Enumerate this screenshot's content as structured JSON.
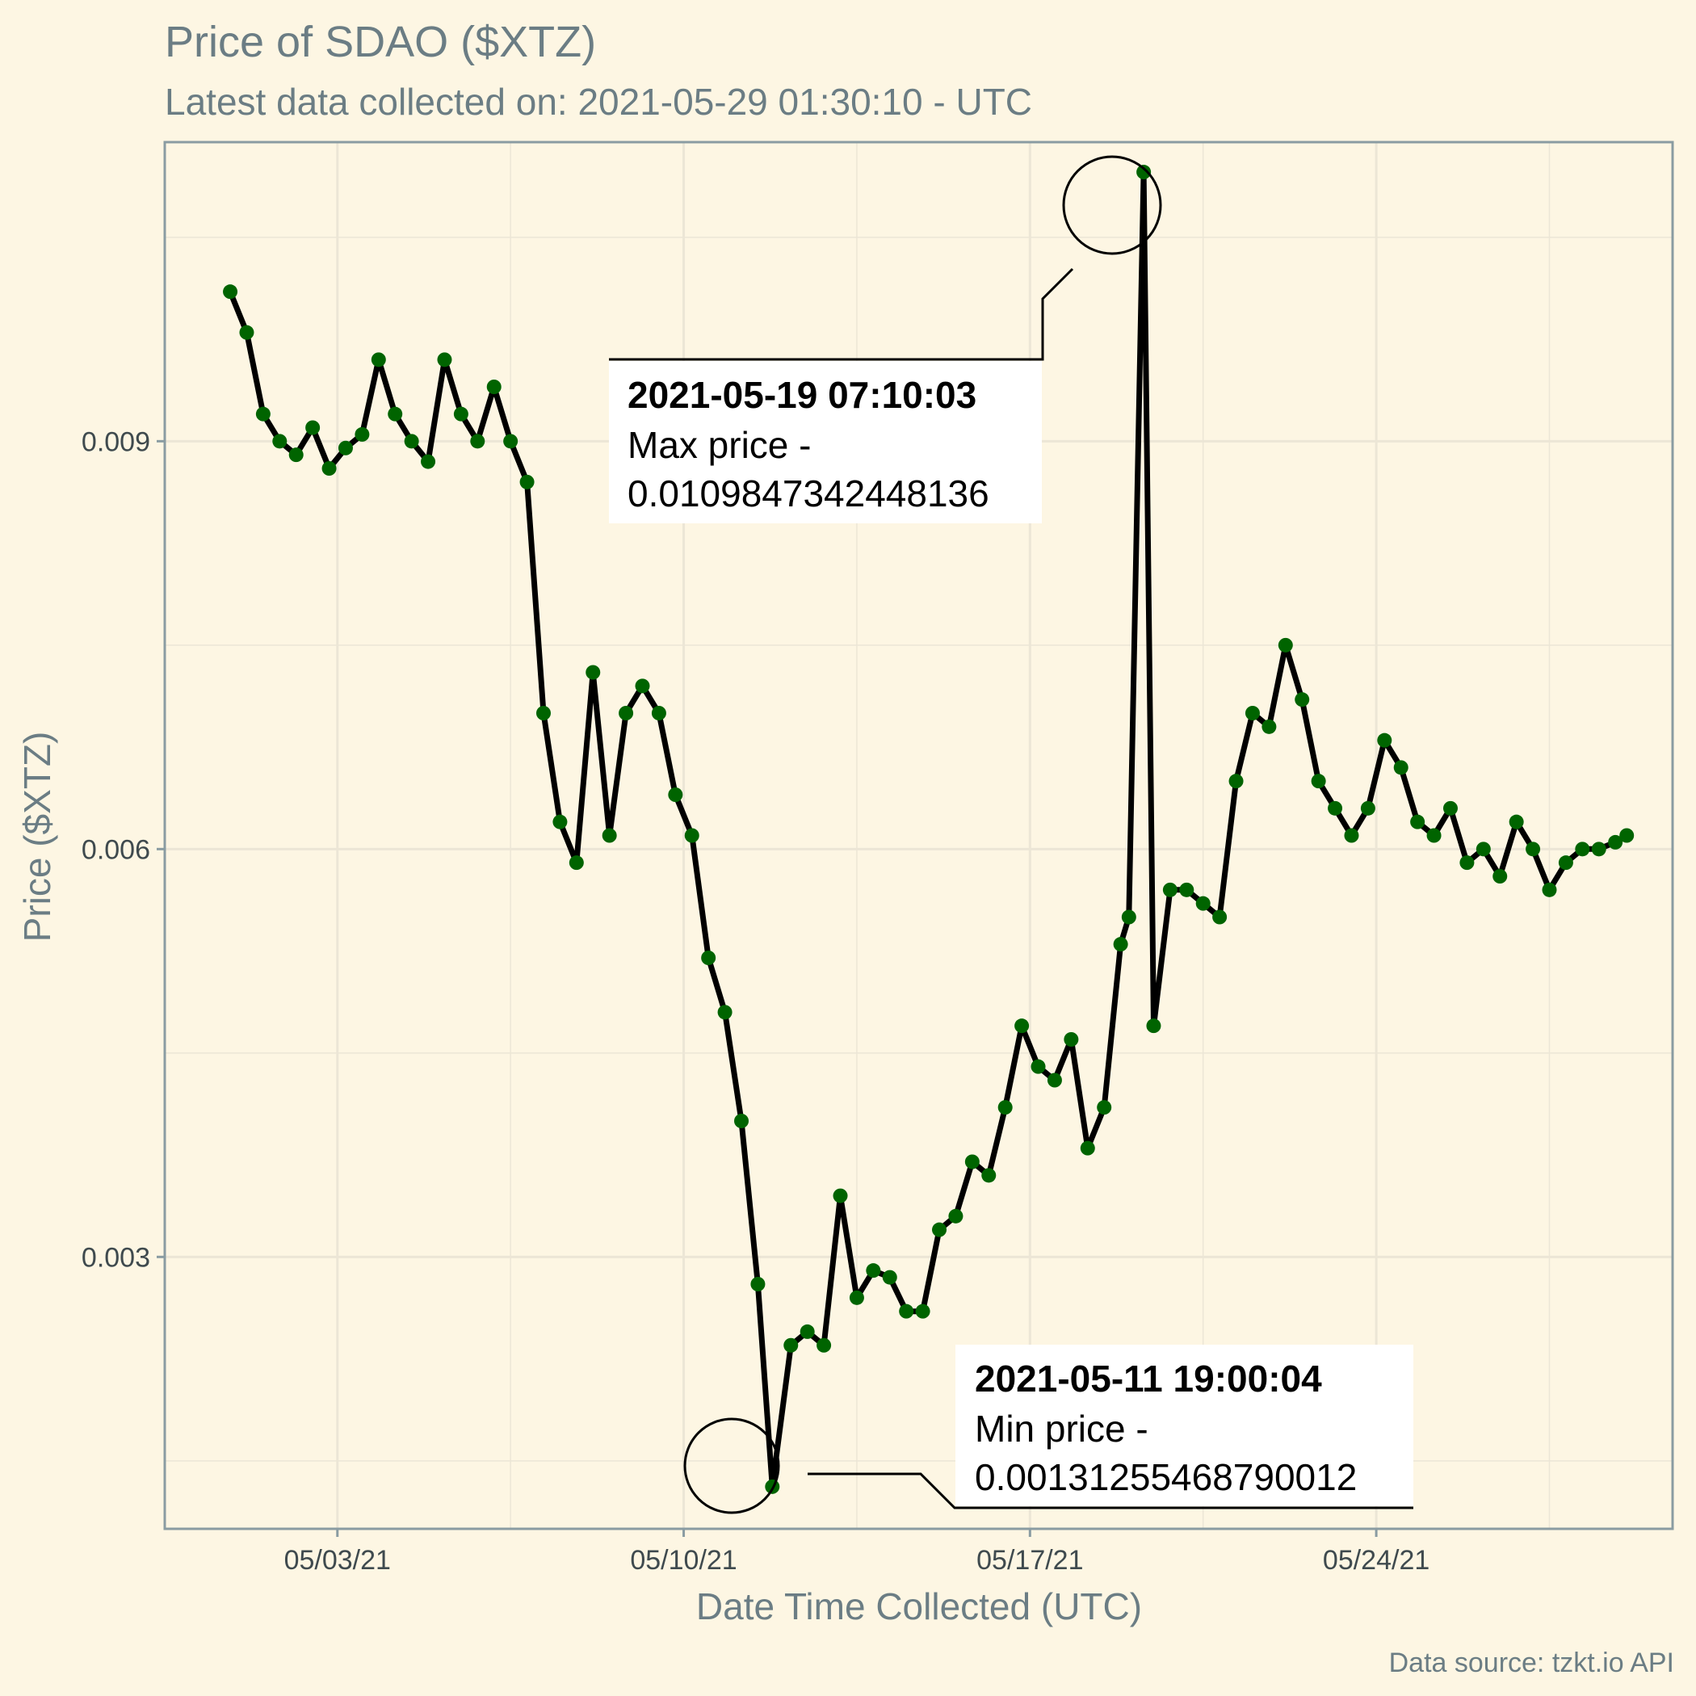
{
  "title": "Price of SDAO ($XTZ)",
  "subtitle": "Latest data collected on: 2021-05-29 01:30:10  - UTC",
  "caption": "Data source: tzkt.io API",
  "colors": {
    "background": "#fdf6e3",
    "grid": "#ece6d6",
    "axis_text": "#6b7d84",
    "line": "#000000",
    "points": "#006400"
  },
  "annotations": {
    "max": {
      "timestamp": "2021-05-19 07:10:03",
      "label": "Max price -",
      "value": "0.0109847342448136"
    },
    "min": {
      "timestamp": "2021-05-11 19:00:04",
      "label": "Min price -",
      "value": "0.00131255468790012"
    }
  },
  "chart_data": {
    "type": "line",
    "title": "Price of SDAO ($XTZ)",
    "xlabel": "Date Time Collected (UTC)",
    "ylabel": "Price ($XTZ)",
    "x_ticks": [
      "05/03/21",
      "05/10/21",
      "05/17/21",
      "05/24/21"
    ],
    "y_ticks": [
      "0.003",
      "0.006",
      "0.009"
    ],
    "ylim": [
      0.001,
      0.0112
    ],
    "grid": true,
    "series": [
      {
        "points": [
          [
            "2021-04-30 20:00",
            0.0101
          ],
          [
            "2021-05-01 04:00",
            0.0098
          ],
          [
            "2021-05-01 12:00",
            0.0092
          ],
          [
            "2021-05-01 20:00",
            0.009
          ],
          [
            "2021-05-02 04:00",
            0.0089
          ],
          [
            "2021-05-02 12:00",
            0.0091
          ],
          [
            "2021-05-02 20:00",
            0.0088
          ],
          [
            "2021-05-03 04:00",
            0.00895
          ],
          [
            "2021-05-03 12:00",
            0.00905
          ],
          [
            "2021-05-03 20:00",
            0.0096
          ],
          [
            "2021-05-04 04:00",
            0.0092
          ],
          [
            "2021-05-04 12:00",
            0.009
          ],
          [
            "2021-05-04 20:00",
            0.00885
          ],
          [
            "2021-05-05 04:00",
            0.0096
          ],
          [
            "2021-05-05 12:00",
            0.0092
          ],
          [
            "2021-05-05 20:00",
            0.009
          ],
          [
            "2021-05-06 04:00",
            0.0094
          ],
          [
            "2021-05-06 12:00",
            0.009
          ],
          [
            "2021-05-06 20:00",
            0.0087
          ],
          [
            "2021-05-07 04:00",
            0.007
          ],
          [
            "2021-05-07 12:00",
            0.0062
          ],
          [
            "2021-05-07 20:00",
            0.0059
          ],
          [
            "2021-05-08 04:00",
            0.0073
          ],
          [
            "2021-05-08 12:00",
            0.0061
          ],
          [
            "2021-05-08 20:00",
            0.007
          ],
          [
            "2021-05-09 04:00",
            0.0072
          ],
          [
            "2021-05-09 12:00",
            0.007
          ],
          [
            "2021-05-09 20:00",
            0.0064
          ],
          [
            "2021-05-10 04:00",
            0.0061
          ],
          [
            "2021-05-10 12:00",
            0.0052
          ],
          [
            "2021-05-10 20:00",
            0.0048
          ],
          [
            "2021-05-11 04:00",
            0.004
          ],
          [
            "2021-05-11 12:00",
            0.0028
          ],
          [
            "2021-05-11 19:00",
            0.00131
          ],
          [
            "2021-05-12 04:00",
            0.00235
          ],
          [
            "2021-05-12 12:00",
            0.00245
          ],
          [
            "2021-05-12 20:00",
            0.00235
          ],
          [
            "2021-05-13 04:00",
            0.00345
          ],
          [
            "2021-05-13 12:00",
            0.0027
          ],
          [
            "2021-05-13 20:00",
            0.0029
          ],
          [
            "2021-05-14 04:00",
            0.00285
          ],
          [
            "2021-05-14 12:00",
            0.0026
          ],
          [
            "2021-05-14 20:00",
            0.0026
          ],
          [
            "2021-05-15 04:00",
            0.0032
          ],
          [
            "2021-05-15 12:00",
            0.0033
          ],
          [
            "2021-05-15 20:00",
            0.0037
          ],
          [
            "2021-05-16 04:00",
            0.0036
          ],
          [
            "2021-05-16 12:00",
            0.0041
          ],
          [
            "2021-05-16 20:00",
            0.0047
          ],
          [
            "2021-05-17 04:00",
            0.0044
          ],
          [
            "2021-05-17 12:00",
            0.0043
          ],
          [
            "2021-05-17 20:00",
            0.0046
          ],
          [
            "2021-05-18 04:00",
            0.0038
          ],
          [
            "2021-05-18 12:00",
            0.0041
          ],
          [
            "2021-05-18 20:00",
            0.0053
          ],
          [
            "2021-05-19 00:00",
            0.0055
          ],
          [
            "2021-05-19 07:10",
            0.01098
          ],
          [
            "2021-05-19 12:00",
            0.0047
          ],
          [
            "2021-05-19 20:00",
            0.0057
          ],
          [
            "2021-05-20 04:00",
            0.0057
          ],
          [
            "2021-05-20 12:00",
            0.0056
          ],
          [
            "2021-05-20 20:00",
            0.0055
          ],
          [
            "2021-05-21 04:00",
            0.0065
          ],
          [
            "2021-05-21 12:00",
            0.007
          ],
          [
            "2021-05-21 20:00",
            0.0069
          ],
          [
            "2021-05-22 04:00",
            0.0075
          ],
          [
            "2021-05-22 12:00",
            0.0071
          ],
          [
            "2021-05-22 20:00",
            0.0065
          ],
          [
            "2021-05-23 04:00",
            0.0063
          ],
          [
            "2021-05-23 12:00",
            0.0061
          ],
          [
            "2021-05-23 20:00",
            0.0063
          ],
          [
            "2021-05-24 04:00",
            0.0068
          ],
          [
            "2021-05-24 12:00",
            0.0066
          ],
          [
            "2021-05-24 20:00",
            0.0062
          ],
          [
            "2021-05-25 04:00",
            0.0061
          ],
          [
            "2021-05-25 12:00",
            0.0063
          ],
          [
            "2021-05-25 20:00",
            0.0059
          ],
          [
            "2021-05-26 04:00",
            0.006
          ],
          [
            "2021-05-26 12:00",
            0.0058
          ],
          [
            "2021-05-26 20:00",
            0.0062
          ],
          [
            "2021-05-27 04:00",
            0.006
          ],
          [
            "2021-05-27 12:00",
            0.0057
          ],
          [
            "2021-05-27 20:00",
            0.0059
          ],
          [
            "2021-05-28 04:00",
            0.006
          ],
          [
            "2021-05-28 12:00",
            0.006
          ],
          [
            "2021-05-28 20:00",
            0.00605
          ],
          [
            "2021-05-29 01:30",
            0.0061
          ]
        ]
      }
    ]
  }
}
